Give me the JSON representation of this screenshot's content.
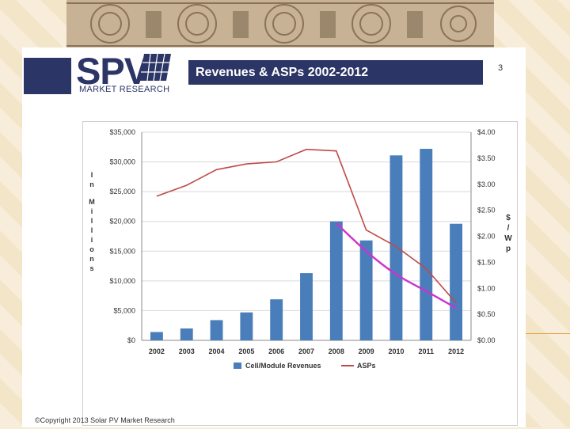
{
  "slide": {
    "page_number": "3",
    "title": "Revenues & ASPs 2002-2012",
    "copyright": "©Copyright 2013 Solar PV Market Research"
  },
  "logo": {
    "name": "SPV",
    "subtitle": "MARKET RESEARCH"
  },
  "colors": {
    "brand_navy": "#2b3566",
    "bar_blue": "#4a7ebb",
    "asp_red": "#be4b48",
    "trend_magenta": "#cc33cc"
  },
  "chart_data": {
    "type": "bar",
    "categories": [
      "2002",
      "2003",
      "2004",
      "2005",
      "2006",
      "2007",
      "2008",
      "2009",
      "2010",
      "2011",
      "2012"
    ],
    "series": [
      {
        "name": "Cell/Module Revenues",
        "type": "bar",
        "axis": "left",
        "values": [
          1400,
          2000,
          3400,
          4700,
          6900,
          11300,
          20000,
          16800,
          31100,
          32200,
          19600
        ]
      },
      {
        "name": "ASPs",
        "type": "line",
        "axis": "right",
        "values": [
          2.77,
          2.98,
          3.28,
          3.39,
          3.43,
          3.67,
          3.64,
          2.12,
          1.8,
          1.38,
          0.72
        ]
      }
    ],
    "trend_curve": {
      "x": [
        "2008",
        "2009",
        "2010",
        "2011",
        "2012"
      ],
      "values": [
        2.25,
        1.7,
        1.25,
        0.95,
        0.62
      ]
    },
    "ylim_left": [
      0,
      35000
    ],
    "ylim_right": [
      0,
      4.0
    ],
    "y_ticks_left": [
      "$0",
      "$5,000",
      "$10,000",
      "$15,000",
      "$20,000",
      "$25,000",
      "$30,000",
      "$35,000"
    ],
    "y_ticks_right": [
      "$0.00",
      "$0.50",
      "$1.00",
      "$1.50",
      "$2.00",
      "$2.50",
      "$3.00",
      "$3.50",
      "$4.00"
    ],
    "ylabel_left": "In Millions",
    "ylabel_right": "$/Wp",
    "grid": true,
    "legend_position": "bottom"
  }
}
